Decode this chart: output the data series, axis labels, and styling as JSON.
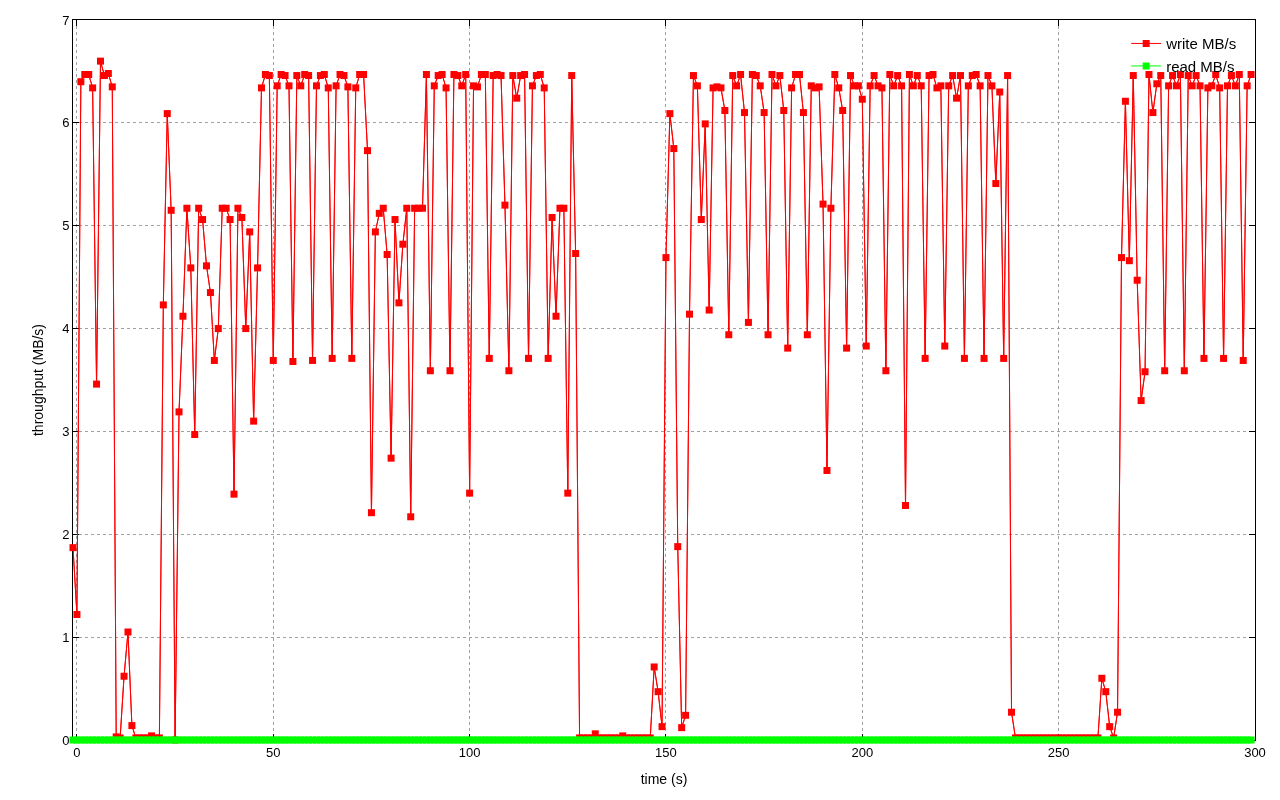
{
  "chart_data": {
    "type": "line",
    "xlabel": "time (s)",
    "ylabel": "throughput (MB/s)",
    "xlim": [
      -1,
      300
    ],
    "ylim": [
      0,
      7
    ],
    "xticks": [
      0,
      50,
      100,
      150,
      200,
      250,
      300
    ],
    "yticks": [
      0,
      1,
      2,
      3,
      4,
      5,
      6,
      7
    ],
    "grid": true,
    "legend": "top right",
    "marker": "square",
    "line_style": "solid",
    "x": [
      -1,
      0,
      1,
      2,
      3,
      4,
      5,
      6,
      7,
      8,
      9,
      10,
      11,
      12,
      13,
      14,
      15,
      16,
      17,
      18,
      19,
      20,
      21,
      22,
      23,
      24,
      25,
      26,
      27,
      28,
      29,
      30,
      31,
      32,
      33,
      34,
      35,
      36,
      37,
      38,
      39,
      40,
      41,
      42,
      43,
      44,
      45,
      46,
      47,
      48,
      49,
      50,
      51,
      52,
      53,
      54,
      55,
      56,
      57,
      58,
      59,
      60,
      61,
      62,
      63,
      64,
      65,
      66,
      67,
      68,
      69,
      70,
      71,
      72,
      73,
      74,
      75,
      76,
      77,
      78,
      79,
      80,
      81,
      82,
      83,
      84,
      85,
      86,
      87,
      88,
      89,
      90,
      91,
      92,
      93,
      94,
      95,
      96,
      97,
      98,
      99,
      100,
      101,
      102,
      103,
      104,
      105,
      106,
      107,
      108,
      109,
      110,
      111,
      112,
      113,
      114,
      115,
      116,
      117,
      118,
      119,
      120,
      121,
      122,
      123,
      124,
      125,
      126,
      127,
      128,
      129,
      130,
      131,
      132,
      133,
      134,
      135,
      136,
      137,
      138,
      139,
      140,
      141,
      142,
      143,
      144,
      145,
      146,
      147,
      148,
      149,
      150,
      151,
      152,
      153,
      154,
      155,
      156,
      157,
      158,
      159,
      160,
      161,
      162,
      163,
      164,
      165,
      166,
      167,
      168,
      169,
      170,
      171,
      172,
      173,
      174,
      175,
      176,
      177,
      178,
      179,
      180,
      181,
      182,
      183,
      184,
      185,
      186,
      187,
      188,
      189,
      190,
      191,
      192,
      193,
      194,
      195,
      196,
      197,
      198,
      199,
      200,
      201,
      202,
      203,
      204,
      205,
      206,
      207,
      208,
      209,
      210,
      211,
      212,
      213,
      214,
      215,
      216,
      217,
      218,
      219,
      220,
      221,
      222,
      223,
      224,
      225,
      226,
      227,
      228,
      229,
      230,
      231,
      232,
      233,
      234,
      235,
      236,
      237,
      238,
      239,
      240,
      241,
      242,
      243,
      244,
      245,
      246,
      247,
      248,
      249,
      250,
      251,
      252,
      253,
      254,
      255,
      256,
      257,
      258,
      259,
      260,
      261,
      262,
      263,
      264,
      265,
      266,
      267,
      268,
      269,
      270,
      271,
      272,
      273,
      274,
      275,
      276,
      277,
      278,
      279,
      280,
      281,
      282,
      283,
      284,
      285,
      286,
      287,
      288,
      289,
      290,
      291,
      292,
      293,
      294,
      295,
      296,
      297,
      298,
      299
    ],
    "series": [
      {
        "name": "write MB/s",
        "color": "#ff0000",
        "values": [
          1.87,
          1.22,
          6.4,
          6.47,
          6.47,
          6.34,
          3.46,
          6.6,
          6.46,
          6.48,
          6.35,
          0.03,
          0.02,
          0.62,
          1.05,
          0.14,
          0.02,
          0.02,
          0.02,
          0.02,
          0.04,
          0.02,
          0.02,
          4.23,
          6.09,
          5.15,
          0,
          3.19,
          4.12,
          5.17,
          4.59,
          2.97,
          5.17,
          5.06,
          4.61,
          4.35,
          3.69,
          4,
          5.17,
          5.17,
          5.06,
          2.39,
          5.17,
          5.08,
          4,
          4.94,
          3.1,
          4.59,
          6.34,
          6.47,
          6.46,
          3.69,
          6.36,
          6.47,
          6.46,
          6.36,
          3.68,
          6.46,
          6.36,
          6.47,
          6.46,
          3.69,
          6.36,
          6.46,
          6.47,
          6.34,
          3.71,
          6.36,
          6.47,
          6.46,
          6.35,
          3.71,
          6.34,
          6.47,
          6.47,
          5.73,
          2.21,
          4.94,
          5.12,
          5.17,
          4.72,
          2.74,
          5.06,
          4.25,
          4.82,
          5.17,
          2.17,
          5.17,
          5.17,
          5.17,
          6.47,
          3.59,
          6.36,
          6.46,
          6.47,
          6.34,
          3.59,
          6.47,
          6.46,
          6.36,
          6.47,
          2.4,
          6.36,
          6.35,
          6.47,
          6.47,
          3.71,
          6.46,
          6.47,
          6.46,
          5.2,
          3.59,
          6.46,
          6.24,
          6.46,
          6.47,
          3.71,
          6.36,
          6.46,
          6.47,
          6.34,
          3.71,
          5.08,
          4.12,
          5.17,
          5.17,
          2.4,
          6.46,
          4.73,
          0.02,
          0.02,
          0.02,
          0.02,
          0.06,
          0.02,
          0.02,
          0.02,
          0.02,
          0.02,
          0.02,
          0.04,
          0.02,
          0.02,
          0.02,
          0.02,
          0.02,
          0.02,
          0.02,
          0.71,
          0.47,
          0.13,
          4.69,
          6.09,
          5.75,
          1.88,
          0.12,
          0.24,
          4.14,
          6.46,
          6.36,
          5.06,
          5.99,
          4.18,
          6.34,
          6.35,
          6.34,
          6.12,
          3.94,
          6.46,
          6.36,
          6.47,
          6.1,
          4.06,
          6.47,
          6.46,
          6.36,
          6.1,
          3.94,
          6.47,
          6.36,
          6.46,
          6.12,
          3.81,
          6.34,
          6.47,
          6.47,
          6.1,
          3.94,
          6.36,
          6.34,
          6.35,
          5.21,
          2.62,
          5.17,
          6.47,
          6.34,
          6.12,
          3.81,
          6.46,
          6.36,
          6.36,
          6.23,
          3.83,
          6.36,
          6.46,
          6.36,
          6.34,
          3.59,
          6.47,
          6.36,
          6.46,
          6.36,
          2.28,
          6.47,
          6.36,
          6.46,
          6.36,
          3.71,
          6.46,
          6.47,
          6.34,
          6.36,
          3.83,
          6.36,
          6.46,
          6.24,
          6.46,
          3.71,
          6.36,
          6.46,
          6.47,
          6.36,
          3.71,
          6.46,
          6.36,
          5.41,
          6.3,
          3.71,
          6.46,
          0.27,
          0.02,
          0.02,
          0.02,
          0.02,
          0.02,
          0.02,
          0.02,
          0.02,
          0.02,
          0.02,
          0.02,
          0.02,
          0.02,
          0.02,
          0.02,
          0.02,
          0.02,
          0.02,
          0.02,
          0.02,
          0.02,
          0.02,
          0.6,
          0.47,
          0.13,
          0.02,
          0.27,
          4.69,
          6.21,
          4.66,
          6.46,
          4.47,
          3.3,
          3.58,
          6.47,
          6.1,
          6.38,
          6.46,
          3.59,
          6.36,
          6.46,
          6.36,
          6.47,
          3.59,
          6.46,
          6.36,
          6.46,
          6.36,
          3.71,
          6.34,
          6.36,
          6.47,
          6.34,
          3.71,
          6.36,
          6.46,
          6.36,
          6.47,
          3.69,
          6.36,
          6.47
        ]
      },
      {
        "name": "read MB/s",
        "color": "#00ff00",
        "values": [
          0,
          0,
          0,
          0,
          0,
          0,
          0,
          0,
          0,
          0,
          0,
          0,
          0,
          0,
          0,
          0,
          0,
          0,
          0,
          0,
          0,
          0,
          0,
          0,
          0,
          0,
          0,
          0,
          0,
          0,
          0,
          0,
          0,
          0,
          0,
          0,
          0,
          0,
          0,
          0,
          0,
          0,
          0,
          0,
          0,
          0,
          0,
          0,
          0,
          0,
          0,
          0,
          0,
          0,
          0,
          0,
          0,
          0,
          0,
          0,
          0,
          0,
          0,
          0,
          0,
          0,
          0,
          0,
          0,
          0,
          0,
          0,
          0,
          0,
          0,
          0,
          0,
          0,
          0,
          0,
          0,
          0,
          0,
          0,
          0,
          0,
          0,
          0,
          0,
          0,
          0,
          0,
          0,
          0,
          0,
          0,
          0,
          0,
          0,
          0,
          0,
          0,
          0,
          0,
          0,
          0,
          0,
          0,
          0,
          0,
          0,
          0,
          0,
          0,
          0,
          0,
          0,
          0,
          0,
          0,
          0,
          0,
          0,
          0,
          0,
          0,
          0,
          0,
          0,
          0,
          0,
          0,
          0,
          0,
          0,
          0,
          0,
          0,
          0,
          0,
          0,
          0,
          0,
          0,
          0,
          0,
          0,
          0,
          0,
          0,
          0,
          0,
          0,
          0,
          0,
          0,
          0,
          0,
          0,
          0,
          0,
          0,
          0,
          0,
          0,
          0,
          0,
          0,
          0,
          0,
          0,
          0,
          0,
          0,
          0,
          0,
          0,
          0,
          0,
          0,
          0,
          0,
          0,
          0,
          0,
          0,
          0,
          0,
          0,
          0,
          0,
          0,
          0,
          0,
          0,
          0,
          0,
          0,
          0,
          0,
          0,
          0,
          0,
          0,
          0,
          0,
          0,
          0,
          0,
          0,
          0,
          0,
          0,
          0,
          0,
          0,
          0,
          0,
          0,
          0,
          0,
          0,
          0,
          0,
          0,
          0,
          0,
          0,
          0,
          0,
          0,
          0,
          0,
          0,
          0,
          0,
          0,
          0,
          0,
          0,
          0,
          0,
          0,
          0,
          0,
          0,
          0,
          0,
          0,
          0,
          0,
          0,
          0,
          0,
          0,
          0,
          0,
          0,
          0,
          0,
          0,
          0,
          0,
          0,
          0,
          0,
          0,
          0,
          0,
          0,
          0,
          0,
          0,
          0,
          0,
          0,
          0,
          0,
          0,
          0,
          0,
          0,
          0,
          0,
          0,
          0,
          0,
          0,
          0,
          0,
          0,
          0,
          0,
          0,
          0,
          0,
          0,
          0,
          0,
          0,
          0
        ]
      }
    ]
  }
}
